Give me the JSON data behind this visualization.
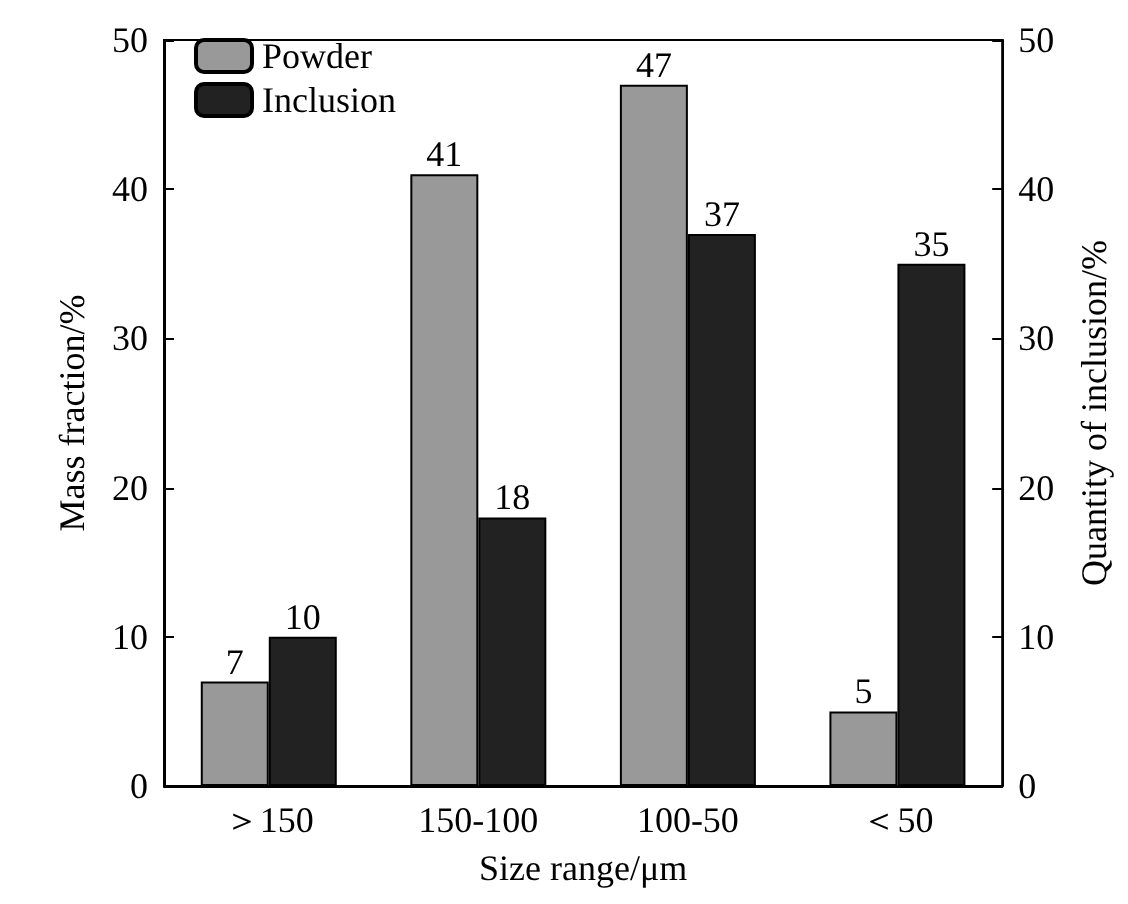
{
  "chart_data": {
    "type": "bar",
    "xlabel": "Size range/μm",
    "ylabel": "Mass fraction/%",
    "y2label": "Quantity of inclusion/%",
    "categories": [
      "＞150",
      "150-100",
      "100-50",
      "＜50"
    ],
    "series": [
      {
        "name": "Powder",
        "color": "#999999",
        "values": [
          7,
          41,
          47,
          5
        ]
      },
      {
        "name": "Inclusion",
        "color": "#222222",
        "values": [
          10,
          18,
          37,
          35
        ],
        "axis": "y2"
      }
    ],
    "ylim": [
      0,
      50
    ],
    "yticks": [
      0,
      10,
      20,
      30,
      40,
      50
    ],
    "y2lim": [
      0,
      50
    ],
    "y2ticks": [
      0,
      10,
      20,
      30,
      40,
      50
    ],
    "data_labels": true,
    "legend": "top left",
    "grid": false
  }
}
